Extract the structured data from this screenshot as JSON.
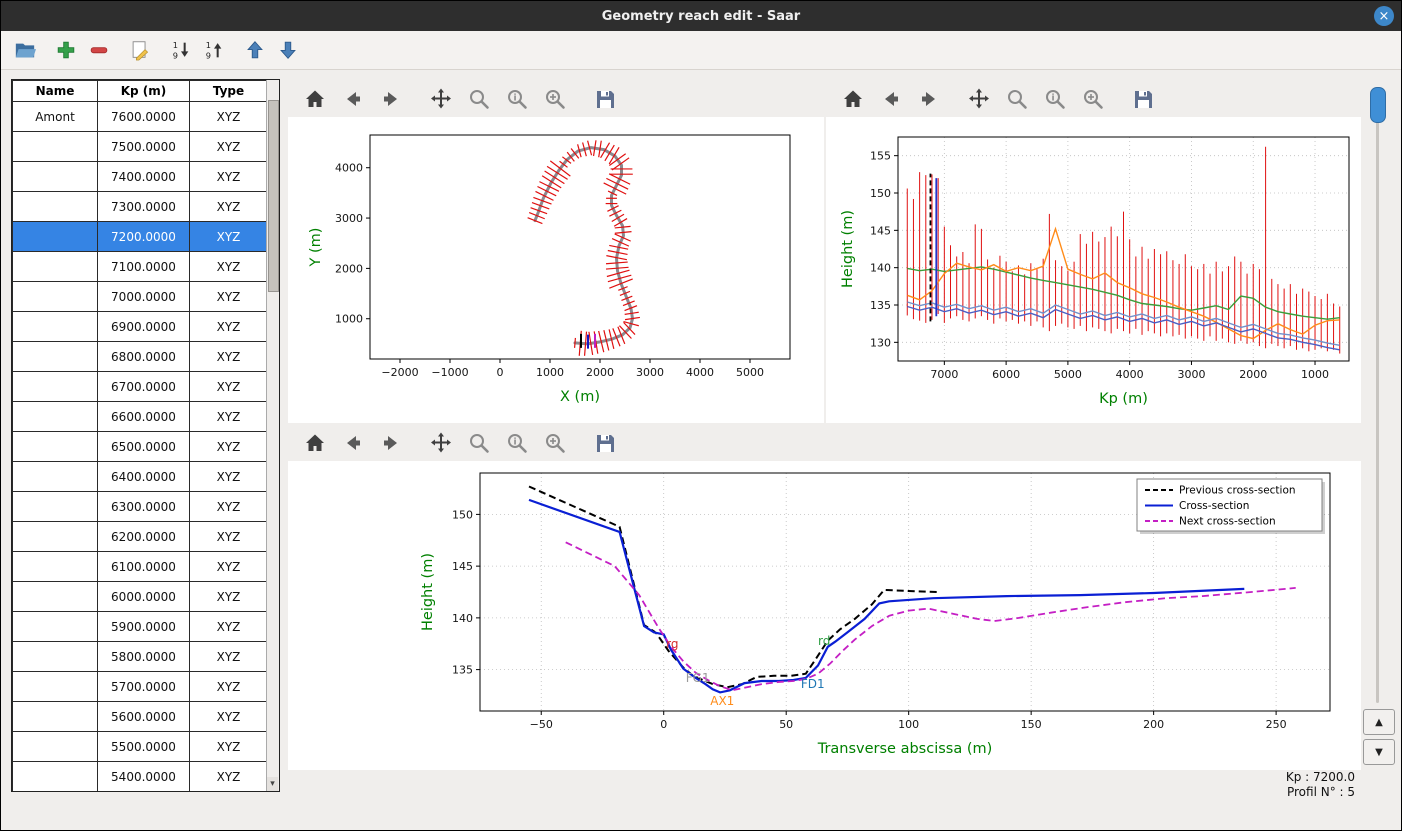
{
  "window": {
    "title": "Geometry reach edit - Saar",
    "close_glyph": "×"
  },
  "app_toolbar": {
    "icons": [
      "open-folder-icon",
      "add-icon",
      "remove-icon",
      "edit-icon",
      "sort-ascending-icon",
      "sort-descending-icon",
      "move-up-icon",
      "move-down-icon"
    ]
  },
  "plot_toolbar": {
    "icons": [
      "home-icon",
      "back-icon",
      "forward-icon",
      "pan-icon",
      "zoom-icon",
      "zoom-info-icon",
      "zoom-rect-icon",
      "save-icon"
    ]
  },
  "table": {
    "headers": [
      "Name",
      "Kp (m)",
      "Type"
    ],
    "selected_index": 4,
    "rows": [
      {
        "name": "Amont",
        "kp": "7600.0000",
        "type": "XYZ"
      },
      {
        "name": "",
        "kp": "7500.0000",
        "type": "XYZ"
      },
      {
        "name": "",
        "kp": "7400.0000",
        "type": "XYZ"
      },
      {
        "name": "",
        "kp": "7300.0000",
        "type": "XYZ"
      },
      {
        "name": "",
        "kp": "7200.0000",
        "type": "XYZ"
      },
      {
        "name": "",
        "kp": "7100.0000",
        "type": "XYZ"
      },
      {
        "name": "",
        "kp": "7000.0000",
        "type": "XYZ"
      },
      {
        "name": "",
        "kp": "6900.0000",
        "type": "XYZ"
      },
      {
        "name": "",
        "kp": "6800.0000",
        "type": "XYZ"
      },
      {
        "name": "",
        "kp": "6700.0000",
        "type": "XYZ"
      },
      {
        "name": "",
        "kp": "6600.0000",
        "type": "XYZ"
      },
      {
        "name": "",
        "kp": "6500.0000",
        "type": "XYZ"
      },
      {
        "name": "",
        "kp": "6400.0000",
        "type": "XYZ"
      },
      {
        "name": "",
        "kp": "6300.0000",
        "type": "XYZ"
      },
      {
        "name": "",
        "kp": "6200.0000",
        "type": "XYZ"
      },
      {
        "name": "",
        "kp": "6100.0000",
        "type": "XYZ"
      },
      {
        "name": "",
        "kp": "6000.0000",
        "type": "XYZ"
      },
      {
        "name": "",
        "kp": "5900.0000",
        "type": "XYZ"
      },
      {
        "name": "",
        "kp": "5800.0000",
        "type": "XYZ"
      },
      {
        "name": "",
        "kp": "5700.0000",
        "type": "XYZ"
      },
      {
        "name": "",
        "kp": "5600.0000",
        "type": "XYZ"
      },
      {
        "name": "",
        "kp": "5500.0000",
        "type": "XYZ"
      },
      {
        "name": "",
        "kp": "5400.0000",
        "type": "XYZ"
      }
    ]
  },
  "scrollbar": {
    "down_glyph": "▾"
  },
  "nav_buttons": {
    "up_glyph": "▲",
    "down_glyph": "▼"
  },
  "status": {
    "kp": "Kp : 7200.0",
    "profil": "Profil N° : 5"
  },
  "chart_data": [
    {
      "type": "line",
      "xlabel": "X (m)",
      "ylabel": "Y (m)",
      "xlim": [
        -2600,
        5800
      ],
      "ylim": [
        200,
        4650
      ],
      "xticks": [
        -2000,
        -1000,
        0,
        1000,
        2000,
        3000,
        4000,
        5000
      ],
      "yticks": [
        1000,
        2000,
        3000,
        4000
      ],
      "grid": false,
      "path_color": "#8a8a90",
      "section_color": "#e01010",
      "n_sections": 70,
      "river_path": [
        [
          1500,
          520
        ],
        [
          1750,
          500
        ],
        [
          2000,
          540
        ],
        [
          2250,
          600
        ],
        [
          2450,
          680
        ],
        [
          2600,
          820
        ],
        [
          2650,
          1000
        ],
        [
          2620,
          1200
        ],
        [
          2520,
          1450
        ],
        [
          2420,
          1700
        ],
        [
          2350,
          1950
        ],
        [
          2330,
          2200
        ],
        [
          2380,
          2450
        ],
        [
          2470,
          2650
        ],
        [
          2450,
          2850
        ],
        [
          2330,
          3050
        ],
        [
          2230,
          3250
        ],
        [
          2230,
          3450
        ],
        [
          2330,
          3650
        ],
        [
          2430,
          3850
        ],
        [
          2430,
          4050
        ],
        [
          2300,
          4230
        ],
        [
          2080,
          4360
        ],
        [
          1820,
          4400
        ],
        [
          1560,
          4330
        ],
        [
          1340,
          4160
        ],
        [
          1180,
          3950
        ],
        [
          1020,
          3700
        ],
        [
          870,
          3400
        ],
        [
          760,
          3100
        ],
        [
          700,
          2950
        ]
      ],
      "markers": [
        {
          "x": 1620,
          "y": 560,
          "color": "#000000"
        },
        {
          "x": 1760,
          "y": 545,
          "color": "#1616c8"
        },
        {
          "x": 1900,
          "y": 560,
          "color": "#c020c0"
        }
      ]
    },
    {
      "type": "composite",
      "xlabel": "Kp (m)",
      "ylabel": "Height (m)",
      "xlim": [
        7750,
        450
      ],
      "ylim": [
        127.5,
        157.5
      ],
      "xticks": [
        7000,
        6000,
        5000,
        4000,
        3000,
        2000,
        1000
      ],
      "yticks": [
        130,
        135,
        140,
        145,
        150,
        155
      ],
      "grid": true,
      "sections": {
        "kp_start": 7600,
        "kp_step": -100,
        "color": "#e01010",
        "top": [
          150.6,
          149.2,
          152.8,
          152.4,
          152.5,
          152.0,
          145.5,
          143.0,
          141.5,
          142.1,
          140.6,
          145.8,
          145.2,
          141.1,
          140.0,
          141.6,
          140.8,
          139.5,
          140.3,
          139.1,
          140.6,
          139.8,
          141.2,
          147.2,
          141.0,
          140.2,
          139.6,
          140.8,
          144.5,
          143.2,
          144.8,
          143.5,
          144.1,
          145.5,
          144.2,
          147.5,
          143.8,
          141.5,
          142.8,
          141.2,
          142.5,
          141.8,
          142.2,
          141.0,
          140.5,
          141.8,
          140.2,
          139.8,
          140.5,
          139.2,
          140.8,
          139.5,
          140.2,
          141.5,
          140.8,
          139.2,
          140.5,
          139.8,
          156.2,
          138.5,
          137.8,
          137.2,
          137.8,
          136.5,
          137.2,
          136.8,
          136.2,
          135.8,
          136.5,
          135.2,
          134.8
        ],
        "bottom": [
          133.6,
          133.1,
          132.9,
          132.6,
          133.0,
          133.8,
          132.6,
          133.2,
          133.5,
          133.0,
          132.8,
          133.2,
          133.5,
          133.0,
          132.5,
          133.2,
          132.8,
          133.0,
          132.5,
          132.8,
          132.2,
          132.8,
          132.0,
          131.5,
          132.2,
          132.5,
          132.0,
          131.8,
          132.2,
          131.5,
          132.0,
          131.8,
          131.5,
          131.2,
          131.8,
          131.5,
          131.2,
          131.8,
          131.0,
          131.5,
          131.2,
          130.8,
          131.2,
          130.8,
          131.0,
          130.5,
          130.8,
          130.5,
          130.2,
          130.8,
          130.2,
          130.5,
          130.0,
          129.8,
          130.2,
          129.8,
          130.0,
          129.5,
          129.2,
          129.8,
          129.5,
          129.2,
          129.5,
          129.0,
          129.2,
          128.8,
          129.0,
          129.2,
          128.8,
          129.0,
          128.5
        ]
      },
      "marker_lines": [
        {
          "kp": 7225,
          "y0": 132.8,
          "y1": 152.6,
          "color": "#000000",
          "dash": "5,3"
        },
        {
          "kp": 7130,
          "y0": 133.5,
          "y1": 152.0,
          "color": "#2230cc",
          "dash": null
        }
      ],
      "lines_x": [
        7600,
        7400,
        7200,
        7000,
        6800,
        6600,
        6400,
        6200,
        6000,
        5800,
        5600,
        5400,
        5200,
        5000,
        4800,
        4600,
        4400,
        4200,
        4000,
        3800,
        3600,
        3400,
        3200,
        3000,
        2800,
        2600,
        2400,
        2200,
        2000,
        1800,
        1600,
        1400,
        1200,
        1000,
        800,
        600
      ],
      "lines": [
        {
          "name": "green-line",
          "color": "#3a9e3a",
          "y": [
            139.9,
            139.6,
            139.8,
            139.5,
            139.7,
            139.9,
            140.1,
            139.8,
            139.4,
            139.0,
            138.6,
            138.3,
            138.0,
            137.7,
            137.4,
            137.1,
            136.7,
            136.3,
            135.7,
            135.2,
            135.0,
            134.8,
            134.5,
            134.3,
            134.6,
            134.9,
            134.4,
            136.2,
            135.9,
            134.7,
            134.1,
            133.8,
            133.5,
            133.3,
            133.1,
            133.3
          ]
        },
        {
          "name": "orange-line",
          "color": "#ff8c1a",
          "y": [
            136.3,
            135.7,
            136.9,
            139.2,
            140.6,
            140.1,
            139.7,
            140.4,
            139.5,
            140.0,
            139.6,
            140.2,
            145.2,
            139.8,
            139.1,
            138.5,
            139.3,
            138.0,
            137.3,
            136.5,
            136.0,
            135.4,
            134.7,
            134.1,
            133.5,
            132.7,
            131.8,
            130.9,
            130.5,
            131.6,
            132.5,
            131.7,
            131.1,
            132.3,
            132.9,
            133.0
          ]
        },
        {
          "name": "blue-line-1",
          "color": "#7090cc",
          "y": [
            135.4,
            134.9,
            135.3,
            134.7,
            135.1,
            134.5,
            134.9,
            134.3,
            134.7,
            134.1,
            134.5,
            133.9,
            135.0,
            134.4,
            133.8,
            134.2,
            133.6,
            134.0,
            133.4,
            133.8,
            133.2,
            133.6,
            133.0,
            133.4,
            132.8,
            133.2,
            132.6,
            132.0,
            132.4,
            131.8,
            131.2,
            131.0,
            130.6,
            130.3,
            129.9,
            129.6
          ]
        },
        {
          "name": "blue-line-2",
          "color": "#4a5fc4",
          "y": [
            134.8,
            134.3,
            134.7,
            134.1,
            134.5,
            133.9,
            134.3,
            133.7,
            134.1,
            133.5,
            133.9,
            133.3,
            134.4,
            133.8,
            133.2,
            133.6,
            133.0,
            133.4,
            132.8,
            133.2,
            132.6,
            133.0,
            132.4,
            132.8,
            132.2,
            132.6,
            132.0,
            131.4,
            131.8,
            131.2,
            130.6,
            130.4,
            130.0,
            129.7,
            129.3,
            129.0
          ]
        }
      ]
    },
    {
      "type": "line",
      "xlabel": "Transverse abscissa (m)",
      "ylabel": "Height (m)",
      "xlim": [
        -75,
        272
      ],
      "ylim": [
        131,
        154
      ],
      "xticks": [
        -50,
        0,
        50,
        100,
        150,
        200,
        250
      ],
      "yticks": [
        135,
        140,
        145,
        150
      ],
      "grid": true,
      "series": [
        {
          "name": "Previous cross-section",
          "color": "#000000",
          "dash": "7,4",
          "width": 2,
          "points": [
            [
              -55,
              152.7
            ],
            [
              -18,
              148.8
            ],
            [
              -8,
              139.3
            ],
            [
              -4,
              138.7
            ],
            [
              -3,
              138.5
            ],
            [
              2,
              136.8
            ],
            [
              8,
              135.2
            ],
            [
              12,
              134.4
            ],
            [
              16,
              134.0
            ],
            [
              20,
              133.6
            ],
            [
              26,
              133.3
            ],
            [
              32,
              133.6
            ],
            [
              38,
              134.3
            ],
            [
              45,
              134.4
            ],
            [
              52,
              134.4
            ],
            [
              58,
              134.6
            ],
            [
              62,
              136.0
            ],
            [
              67,
              137.8
            ],
            [
              72,
              138.9
            ],
            [
              78,
              139.9
            ],
            [
              85,
              141.3
            ],
            [
              90,
              142.7
            ],
            [
              100,
              142.6
            ],
            [
              112,
              142.5
            ]
          ]
        },
        {
          "name": "Cross-section",
          "color": "#0a1fd4",
          "dash": null,
          "width": 2.2,
          "points": [
            [
              -55,
              151.4
            ],
            [
              -18,
              148.3
            ],
            [
              -8,
              139.2
            ],
            [
              -4,
              138.6
            ],
            [
              0,
              138.4
            ],
            [
              3,
              136.9
            ],
            [
              8,
              135.1
            ],
            [
              13,
              134.2
            ],
            [
              17,
              133.6
            ],
            [
              20,
              133.1
            ],
            [
              23,
              132.8
            ],
            [
              27,
              133.0
            ],
            [
              33,
              133.7
            ],
            [
              40,
              133.9
            ],
            [
              47,
              133.9
            ],
            [
              53,
              134.0
            ],
            [
              58,
              134.2
            ],
            [
              63,
              135.4
            ],
            [
              67,
              137.2
            ],
            [
              70,
              137.7
            ],
            [
              75,
              138.6
            ],
            [
              82,
              139.9
            ],
            [
              88,
              141.4
            ],
            [
              92,
              141.6
            ],
            [
              110,
              141.9
            ],
            [
              140,
              142.1
            ],
            [
              170,
              142.2
            ],
            [
              200,
              142.4
            ],
            [
              237,
              142.8
            ]
          ]
        },
        {
          "name": "Next cross-section",
          "color": "#c41fc4",
          "dash": "7,4",
          "width": 1.8,
          "points": [
            [
              -40,
              147.3
            ],
            [
              -20,
              145.0
            ],
            [
              -10,
              142.2
            ],
            [
              -6,
              140.6
            ],
            [
              -2,
              139.0
            ],
            [
              3,
              137.2
            ],
            [
              8,
              135.8
            ],
            [
              13,
              134.7
            ],
            [
              18,
              134.0
            ],
            [
              23,
              133.4
            ],
            [
              28,
              133.0
            ],
            [
              34,
              133.3
            ],
            [
              40,
              133.6
            ],
            [
              47,
              133.8
            ],
            [
              53,
              133.9
            ],
            [
              58,
              134.1
            ],
            [
              63,
              134.6
            ],
            [
              68,
              135.6
            ],
            [
              73,
              136.8
            ],
            [
              78,
              137.9
            ],
            [
              85,
              139.2
            ],
            [
              92,
              140.2
            ],
            [
              100,
              140.7
            ],
            [
              108,
              140.9
            ],
            [
              118,
              140.4
            ],
            [
              128,
              139.9
            ],
            [
              135,
              139.7
            ],
            [
              145,
              140.0
            ],
            [
              158,
              140.5
            ],
            [
              172,
              141.0
            ],
            [
              188,
              141.5
            ],
            [
              205,
              141.9
            ],
            [
              220,
              142.1
            ],
            [
              240,
              142.5
            ],
            [
              258,
              142.9
            ]
          ]
        }
      ],
      "annotations": [
        {
          "text": "rg",
          "x": 1,
          "y": 137.1,
          "color": "#d42a2a"
        },
        {
          "text": "rd",
          "x": 63,
          "y": 137.4,
          "color": "#2f9e44"
        },
        {
          "text": "FG1",
          "x": 9,
          "y": 133.8,
          "color": "#9a9a9a"
        },
        {
          "text": "FD1",
          "x": 56,
          "y": 133.2,
          "color": "#1f77b4"
        },
        {
          "text": "AX1",
          "x": 19,
          "y": 131.6,
          "color": "#ff8c1a"
        }
      ]
    }
  ]
}
